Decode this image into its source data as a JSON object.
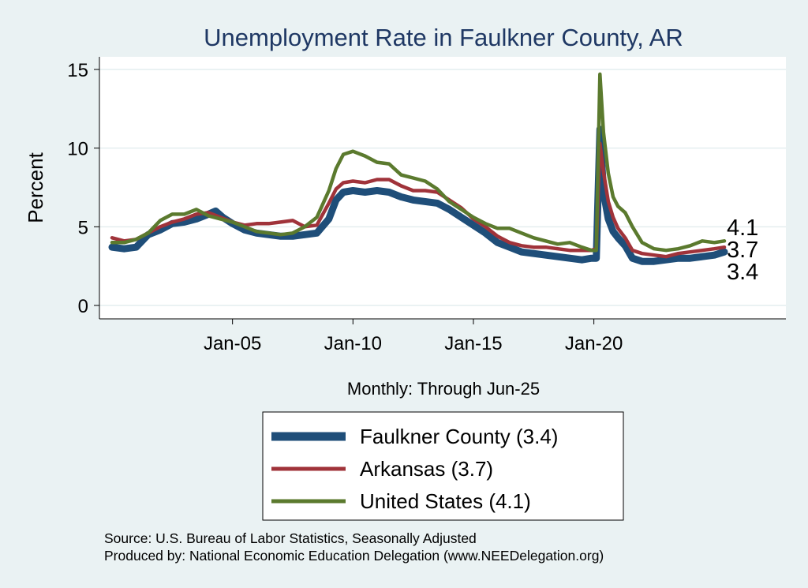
{
  "chart_data": {
    "type": "line",
    "title": "Unemployment Rate in Faulkner  County, AR",
    "ylabel": "Percent",
    "xlabel": "Monthly: Through Jun-25",
    "ylim": [
      0,
      15
    ],
    "yticks": [
      0,
      5,
      10,
      15
    ],
    "x_start": 2000.0,
    "x_end": 2025.4167,
    "xticks": [
      {
        "value": 2005,
        "label": "Jan-05"
      },
      {
        "value": 2010,
        "label": "Jan-10"
      },
      {
        "value": 2015,
        "label": "Jan-15"
      },
      {
        "value": 2020,
        "label": "Jan-20"
      }
    ],
    "grid": true,
    "legend_placement": "bottom",
    "series": [
      {
        "name": "Faulkner  County (3.4)",
        "color": "#1f4e79",
        "end_value": "3.4",
        "points": [
          [
            2000.0,
            3.7
          ],
          [
            2000.5,
            3.6
          ],
          [
            2001.0,
            3.7
          ],
          [
            2001.5,
            4.5
          ],
          [
            2002.0,
            4.8
          ],
          [
            2002.5,
            5.2
          ],
          [
            2003.0,
            5.3
          ],
          [
            2003.5,
            5.5
          ],
          [
            2004.0,
            5.8
          ],
          [
            2004.3,
            6.0
          ],
          [
            2004.6,
            5.6
          ],
          [
            2005.0,
            5.2
          ],
          [
            2005.5,
            4.8
          ],
          [
            2006.0,
            4.6
          ],
          [
            2006.5,
            4.5
          ],
          [
            2007.0,
            4.4
          ],
          [
            2007.5,
            4.4
          ],
          [
            2008.0,
            4.5
          ],
          [
            2008.5,
            4.6
          ],
          [
            2009.0,
            5.5
          ],
          [
            2009.3,
            6.7
          ],
          [
            2009.6,
            7.2
          ],
          [
            2010.0,
            7.3
          ],
          [
            2010.5,
            7.2
          ],
          [
            2011.0,
            7.3
          ],
          [
            2011.5,
            7.2
          ],
          [
            2012.0,
            6.9
          ],
          [
            2012.5,
            6.7
          ],
          [
            2013.0,
            6.6
          ],
          [
            2013.5,
            6.5
          ],
          [
            2014.0,
            6.1
          ],
          [
            2014.5,
            5.6
          ],
          [
            2015.0,
            5.1
          ],
          [
            2015.5,
            4.6
          ],
          [
            2016.0,
            4.0
          ],
          [
            2016.5,
            3.7
          ],
          [
            2017.0,
            3.4
          ],
          [
            2017.5,
            3.3
          ],
          [
            2018.0,
            3.2
          ],
          [
            2018.5,
            3.1
          ],
          [
            2019.0,
            3.0
          ],
          [
            2019.5,
            2.9
          ],
          [
            2019.9,
            3.0
          ],
          [
            2020.1,
            3.0
          ],
          [
            2020.25,
            11.2
          ],
          [
            2020.4,
            7.2
          ],
          [
            2020.6,
            5.5
          ],
          [
            2020.8,
            4.7
          ],
          [
            2021.0,
            4.3
          ],
          [
            2021.3,
            3.8
          ],
          [
            2021.6,
            3.0
          ],
          [
            2022.0,
            2.8
          ],
          [
            2022.5,
            2.8
          ],
          [
            2023.0,
            2.9
          ],
          [
            2023.5,
            3.0
          ],
          [
            2024.0,
            3.0
          ],
          [
            2024.5,
            3.1
          ],
          [
            2025.0,
            3.2
          ],
          [
            2025.4167,
            3.4
          ]
        ]
      },
      {
        "name": "Arkansas (3.7)",
        "color": "#a0333a",
        "end_value": "3.7",
        "points": [
          [
            2000.0,
            4.3
          ],
          [
            2000.5,
            4.1
          ],
          [
            2001.0,
            4.2
          ],
          [
            2001.5,
            4.6
          ],
          [
            2002.0,
            5.0
          ],
          [
            2002.5,
            5.3
          ],
          [
            2003.0,
            5.5
          ],
          [
            2003.5,
            5.8
          ],
          [
            2004.0,
            5.9
          ],
          [
            2004.5,
            5.6
          ],
          [
            2005.0,
            5.3
          ],
          [
            2005.5,
            5.1
          ],
          [
            2006.0,
            5.2
          ],
          [
            2006.5,
            5.2
          ],
          [
            2007.0,
            5.3
          ],
          [
            2007.5,
            5.4
          ],
          [
            2008.0,
            5.0
          ],
          [
            2008.5,
            5.1
          ],
          [
            2009.0,
            6.5
          ],
          [
            2009.3,
            7.4
          ],
          [
            2009.6,
            7.8
          ],
          [
            2010.0,
            7.9
          ],
          [
            2010.5,
            7.8
          ],
          [
            2011.0,
            8.0
          ],
          [
            2011.5,
            8.0
          ],
          [
            2012.0,
            7.6
          ],
          [
            2012.5,
            7.3
          ],
          [
            2013.0,
            7.3
          ],
          [
            2013.5,
            7.2
          ],
          [
            2014.0,
            6.7
          ],
          [
            2014.5,
            6.2
          ],
          [
            2015.0,
            5.5
          ],
          [
            2015.5,
            5.0
          ],
          [
            2016.0,
            4.4
          ],
          [
            2016.5,
            4.0
          ],
          [
            2017.0,
            3.8
          ],
          [
            2017.5,
            3.7
          ],
          [
            2018.0,
            3.7
          ],
          [
            2018.5,
            3.6
          ],
          [
            2019.0,
            3.5
          ],
          [
            2019.5,
            3.5
          ],
          [
            2019.9,
            3.5
          ],
          [
            2020.1,
            3.6
          ],
          [
            2020.25,
            10.3
          ],
          [
            2020.4,
            8.5
          ],
          [
            2020.6,
            6.6
          ],
          [
            2020.8,
            5.6
          ],
          [
            2021.0,
            4.9
          ],
          [
            2021.3,
            4.3
          ],
          [
            2021.6,
            3.5
          ],
          [
            2022.0,
            3.3
          ],
          [
            2022.5,
            3.2
          ],
          [
            2023.0,
            3.1
          ],
          [
            2023.5,
            3.3
          ],
          [
            2024.0,
            3.4
          ],
          [
            2024.5,
            3.5
          ],
          [
            2025.0,
            3.6
          ],
          [
            2025.4167,
            3.7
          ]
        ]
      },
      {
        "name": "United States (4.1)",
        "color": "#5b7a2e",
        "end_value": "4.1",
        "points": [
          [
            2000.0,
            4.0
          ],
          [
            2000.5,
            4.0
          ],
          [
            2001.0,
            4.2
          ],
          [
            2001.5,
            4.6
          ],
          [
            2002.0,
            5.4
          ],
          [
            2002.5,
            5.8
          ],
          [
            2003.0,
            5.8
          ],
          [
            2003.5,
            6.1
          ],
          [
            2004.0,
            5.7
          ],
          [
            2004.5,
            5.5
          ],
          [
            2005.0,
            5.3
          ],
          [
            2005.5,
            5.0
          ],
          [
            2006.0,
            4.7
          ],
          [
            2006.5,
            4.6
          ],
          [
            2007.0,
            4.5
          ],
          [
            2007.5,
            4.6
          ],
          [
            2008.0,
            5.0
          ],
          [
            2008.5,
            5.6
          ],
          [
            2009.0,
            7.3
          ],
          [
            2009.3,
            8.7
          ],
          [
            2009.6,
            9.6
          ],
          [
            2010.0,
            9.8
          ],
          [
            2010.5,
            9.5
          ],
          [
            2011.0,
            9.1
          ],
          [
            2011.5,
            9.0
          ],
          [
            2012.0,
            8.3
          ],
          [
            2012.5,
            8.1
          ],
          [
            2013.0,
            7.9
          ],
          [
            2013.5,
            7.4
          ],
          [
            2014.0,
            6.6
          ],
          [
            2014.5,
            6.1
          ],
          [
            2015.0,
            5.6
          ],
          [
            2015.5,
            5.2
          ],
          [
            2016.0,
            4.9
          ],
          [
            2016.5,
            4.9
          ],
          [
            2017.0,
            4.6
          ],
          [
            2017.5,
            4.3
          ],
          [
            2018.0,
            4.1
          ],
          [
            2018.5,
            3.9
          ],
          [
            2019.0,
            4.0
          ],
          [
            2019.5,
            3.7
          ],
          [
            2019.9,
            3.5
          ],
          [
            2020.1,
            3.5
          ],
          [
            2020.25,
            14.7
          ],
          [
            2020.4,
            11.0
          ],
          [
            2020.6,
            8.4
          ],
          [
            2020.8,
            6.9
          ],
          [
            2021.0,
            6.3
          ],
          [
            2021.3,
            5.9
          ],
          [
            2021.6,
            5.0
          ],
          [
            2022.0,
            4.0
          ],
          [
            2022.5,
            3.6
          ],
          [
            2023.0,
            3.5
          ],
          [
            2023.5,
            3.6
          ],
          [
            2024.0,
            3.8
          ],
          [
            2024.5,
            4.1
          ],
          [
            2025.0,
            4.0
          ],
          [
            2025.4167,
            4.1
          ]
        ]
      }
    ]
  },
  "source_lines": [
    "Source: U.S. Bureau of Labor Statistics, Seasonally Adjusted",
    "Produced by: National Economic Education Delegation (www.NEEDelegation.org)"
  ]
}
